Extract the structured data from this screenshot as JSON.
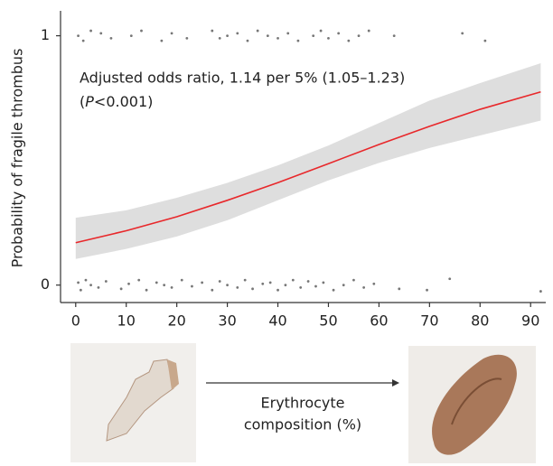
{
  "chart_data": {
    "type": "line",
    "ylabel": "Probability of fragile thrombus",
    "xlabel_lines": [
      "Erythrocyte",
      "composition (%)"
    ],
    "annotation": "Adjusted odds ratio, 1.14 per 5% (1.05–1.23)",
    "annotation_p": [
      "(",
      "P",
      "<0.001)"
    ],
    "xlim": [
      -3,
      93
    ],
    "ylim": [
      -0.07,
      1.1
    ],
    "xticks": [
      0,
      10,
      20,
      30,
      40,
      50,
      60,
      70,
      80,
      90
    ],
    "yticks": [
      0,
      1
    ],
    "curve": {
      "color": "#e8282b",
      "band_color": "#dedede",
      "x": [
        0,
        10,
        20,
        30,
        40,
        50,
        60,
        70,
        80,
        92
      ],
      "values": [
        0.17,
        0.218,
        0.274,
        0.34,
        0.411,
        0.487,
        0.564,
        0.637,
        0.705,
        0.775
      ],
      "lower": [
        0.105,
        0.145,
        0.195,
        0.26,
        0.34,
        0.42,
        0.49,
        0.55,
        0.6,
        0.66
      ],
      "upper": [
        0.27,
        0.3,
        0.35,
        0.41,
        0.48,
        0.56,
        0.65,
        0.74,
        0.81,
        0.89
      ]
    },
    "points": [
      {
        "color": "#777777",
        "x": [
          0.5,
          1,
          2,
          3,
          4.5,
          6,
          9,
          10.5,
          12.5,
          14,
          16,
          17.5,
          19,
          21,
          23,
          25,
          27,
          28.5,
          30,
          32,
          33.5,
          35,
          37,
          38.5,
          40,
          41.5,
          43,
          44.5,
          46,
          47.5,
          49,
          51,
          53,
          55,
          57,
          59,
          64,
          69.5,
          74,
          92
        ],
        "y": [
          0.01,
          -0.02,
          0.02,
          0,
          -0.01,
          0.015,
          -0.015,
          0.005,
          0.02,
          -0.02,
          0.01,
          0,
          -0.01,
          0.02,
          -0.005,
          0.01,
          -0.02,
          0.015,
          0,
          -0.01,
          0.02,
          -0.015,
          0.005,
          0.01,
          -0.02,
          0,
          0.02,
          -0.01,
          0.015,
          -0.005,
          0.01,
          -0.02,
          0,
          0.02,
          -0.01,
          0.005,
          -0.015,
          -0.02,
          0.025,
          -0.025
        ]
      },
      {
        "color": "#777777",
        "x": [
          0.5,
          1.5,
          3,
          5,
          7,
          11,
          13,
          17,
          19,
          22,
          27,
          28.5,
          30,
          32,
          34,
          36,
          38,
          40,
          42,
          44,
          47,
          48.5,
          50,
          52,
          54,
          56,
          58,
          63,
          76.5,
          81
        ],
        "y": [
          1.0,
          0.98,
          1.02,
          1.01,
          0.99,
          1.0,
          1.02,
          0.98,
          1.01,
          0.99,
          1.02,
          0.99,
          1.0,
          1.01,
          0.98,
          1.02,
          1.0,
          0.99,
          1.01,
          0.98,
          1.0,
          1.02,
          0.99,
          1.01,
          0.98,
          1.0,
          1.02,
          1.0,
          1.01,
          0.98
        ]
      }
    ]
  }
}
